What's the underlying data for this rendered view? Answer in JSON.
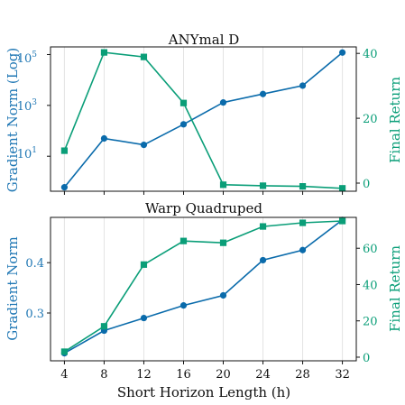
{
  "colors": {
    "gradient": "#0a6bab",
    "return": "#0a9e78",
    "grid": "#e3e3e3",
    "axis": "#111111"
  },
  "chart_data": [
    {
      "type": "line",
      "title": "ANYmal D",
      "xlabel": "",
      "ylabel": "Gradient Norm (Log)",
      "ylabel_right": "Final Return",
      "x": [
        4,
        8,
        12,
        16,
        20,
        24,
        28,
        32
      ],
      "xlim": [
        2.6,
        33.4
      ],
      "yscale": "log",
      "ylim": [
        0.42,
        200000
      ],
      "ylim_right": [
        -2.5,
        42
      ],
      "yticks": [
        10,
        1000,
        100000
      ],
      "ytick_labels": [
        "10",
        "10",
        "10"
      ],
      "ytick_exps": [
        "1",
        "3",
        "5"
      ],
      "yticks_right": [
        0,
        20,
        40
      ],
      "grid": true,
      "series": [
        {
          "axis": "left",
          "marker": "circle",
          "values": [
            0.6,
            50,
            28,
            180,
            1300,
            2800,
            6000,
            120000
          ]
        },
        {
          "axis": "right",
          "marker": "square",
          "values": [
            10,
            40.3,
            38.9,
            24.7,
            -0.5,
            -0.8,
            -1.0,
            -1.6
          ]
        }
      ]
    },
    {
      "type": "line",
      "title": "Warp Quadruped",
      "xlabel": "Short Horizon Length (h)",
      "ylabel": "Gradient Norm",
      "ylabel_right": "Final Return",
      "x": [
        4,
        8,
        12,
        16,
        20,
        24,
        28,
        32
      ],
      "xlim": [
        2.6,
        33.4
      ],
      "xticks": [
        4,
        8,
        12,
        16,
        20,
        24,
        28,
        32
      ],
      "ylim": [
        0.205,
        0.49
      ],
      "ylim_right": [
        -2,
        77
      ],
      "yticks": [
        0.3,
        0.4
      ],
      "yticks_right": [
        0,
        20,
        40,
        60
      ],
      "grid": true,
      "series": [
        {
          "axis": "left",
          "marker": "circle",
          "values": [
            0.22,
            0.265,
            0.29,
            0.315,
            0.335,
            0.405,
            0.425,
            0.485
          ]
        },
        {
          "axis": "right",
          "marker": "square",
          "values": [
            3,
            17,
            51,
            64,
            63,
            72,
            74,
            75
          ]
        }
      ]
    }
  ]
}
